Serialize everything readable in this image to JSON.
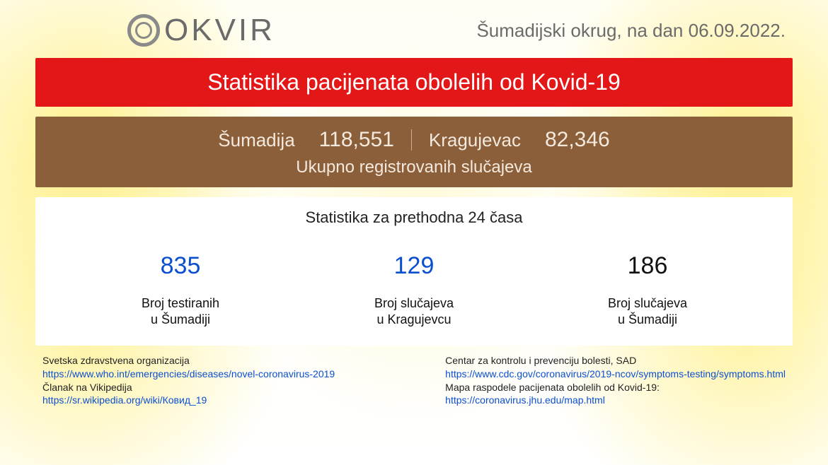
{
  "header": {
    "logo_text": "OKVIR",
    "region_prefix": "Šumadijski okrug, na dan",
    "date": "06.09.2022."
  },
  "title_bar": {
    "text": "Statistika pacijenata obolelih od Kovid-19",
    "background_color": "#e31717",
    "text_color": "#ffffff"
  },
  "totals": {
    "region1_label": "Šumadija",
    "region1_value": "118,551",
    "region2_label": "Kragujevac",
    "region2_value": "82,346",
    "subtitle": "Ukupno registrovanih slučajeva",
    "background_color": "#8a5f3a",
    "text_color": "#f5e9dd"
  },
  "stats24": {
    "title": "Statistika za prethodna 24 časa",
    "items": [
      {
        "value": "835",
        "color": "#0b4fd1",
        "label_line1": "Broj testiranih",
        "label_line2": "u Šumadiji"
      },
      {
        "value": "129",
        "color": "#0b4fd1",
        "label_line1": "Broj slučajeva",
        "label_line2": "u Kragujevcu"
      },
      {
        "value": "186",
        "color": "#111111",
        "label_line1": "Broj slučajeva",
        "label_line2": "u Šumadiji"
      }
    ],
    "background_color": "#ffffff"
  },
  "references": {
    "left": [
      {
        "title": "Svetska zdravstvena organizacija",
        "link": "https://www.who.int/emergencies/diseases/novel-coronavirus-2019"
      },
      {
        "title": "Članak na Vikipedija",
        "link": "https://sr.wikipedia.org/wiki/Ковид_19"
      }
    ],
    "right": [
      {
        "title": "Centar za kontrolu i prevenciju bolesti, SAD",
        "link": "https://www.cdc.gov/coronavirus/2019-ncov/symptoms-testing/symptoms.html"
      },
      {
        "title": "Mapa raspodele pacijenata obolelih od Kovid-19:",
        "link": "https://coronavirus.jhu.edu/map.html"
      }
    ],
    "link_color": "#0b4fd1"
  }
}
